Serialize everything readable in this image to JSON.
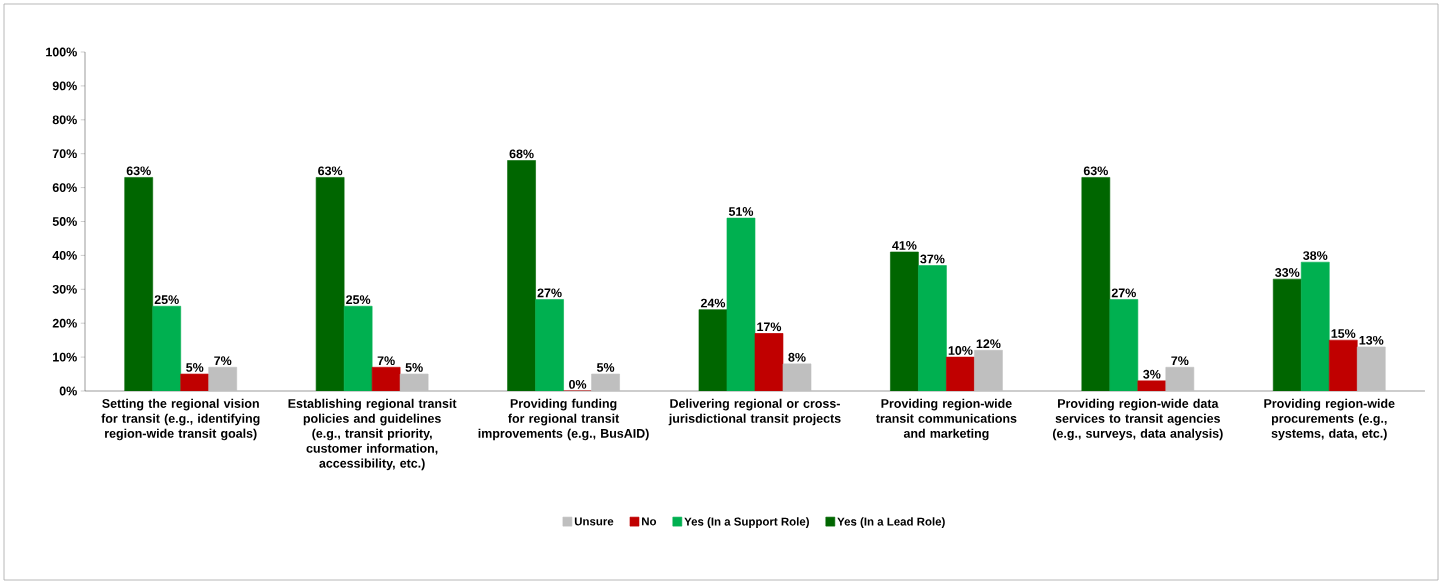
{
  "chart_data": {
    "type": "bar",
    "categories": [
      "Setting the regional vision for transit (e.g., identifying region-wide transit goals)",
      "Establishing regional transit policies and guidelines (e.g., transit priority, customer information, accessibility, etc.)",
      "Providing funding for regional transit improvements (e.g., BusAID)",
      "Delivering regional or cross-jurisdictional transit projects",
      "Providing region-wide transit communications and marketing",
      "Providing region-wide data services to transit agencies (e.g., surveys, data analysis)",
      "Providing region-wide procurements (e.g., systems, data, etc.)"
    ],
    "series": [
      {
        "name": "Yes (In a Lead Role)",
        "color": "#006600",
        "values": [
          63,
          63,
          68,
          24,
          41,
          63,
          33
        ],
        "value_labels": [
          "63%",
          "63%",
          "68%",
          "24%",
          "41%",
          "63%",
          "33%"
        ]
      },
      {
        "name": "Yes (In a Support Role)",
        "color": "#00b050",
        "values": [
          25,
          25,
          27,
          51,
          37,
          27,
          38
        ],
        "value_labels": [
          "25%",
          "25%",
          "27%",
          "51%",
          "37%",
          "27%",
          "38%"
        ]
      },
      {
        "name": "No",
        "color": "#c00000",
        "values": [
          5,
          7,
          0,
          17,
          10,
          3,
          15
        ],
        "value_labels": [
          "5%",
          "7%",
          "0%",
          "17%",
          "10%",
          "3%",
          "15%"
        ]
      },
      {
        "name": "Unsure",
        "color": "#bfbfbf",
        "values": [
          7,
          5,
          5,
          8,
          12,
          7,
          13
        ],
        "value_labels": [
          "7%",
          "5%",
          "5%",
          "8%",
          "12%",
          "7%",
          "13%"
        ]
      }
    ],
    "ylim": [
      0,
      100
    ],
    "yticks": [
      {
        "value": 0,
        "label": "0%"
      },
      {
        "value": 10,
        "label": "10%"
      },
      {
        "value": 20,
        "label": "20%"
      },
      {
        "value": 30,
        "label": "30%"
      },
      {
        "value": 40,
        "label": "40%"
      },
      {
        "value": 50,
        "label": "50%"
      },
      {
        "value": 60,
        "label": "60%"
      },
      {
        "value": 70,
        "label": "70%"
      },
      {
        "value": 80,
        "label": "80%"
      },
      {
        "value": 90,
        "label": "90%"
      },
      {
        "value": 100,
        "label": "100%"
      }
    ],
    "legend": "bottom"
  }
}
